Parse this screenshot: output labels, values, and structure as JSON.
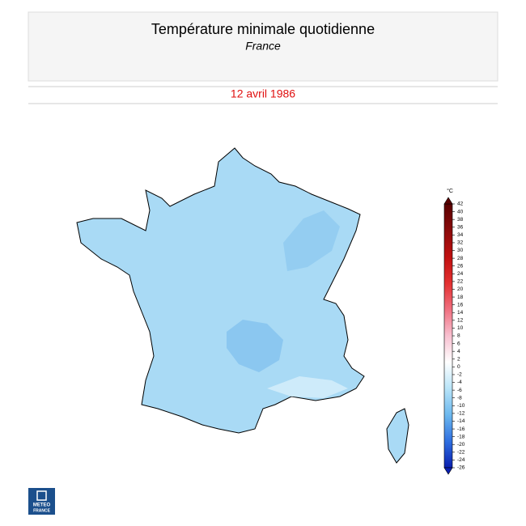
{
  "header": {
    "title": "Température minimale quotidienne",
    "subtitle": "France"
  },
  "date": "12 avril 1986",
  "map": {
    "fill": "#a9daf5",
    "stroke": "#000000"
  },
  "colorbar": {
    "unit": "°C",
    "range": [
      -26,
      42
    ],
    "ticks": [
      42,
      40,
      38,
      36,
      34,
      32,
      30,
      28,
      26,
      24,
      22,
      20,
      18,
      16,
      14,
      12,
      10,
      8,
      6,
      4,
      2,
      0,
      -2,
      -4,
      -6,
      -8,
      -10,
      -12,
      -14,
      -16,
      -18,
      -20,
      -22,
      -24,
      -26
    ],
    "colors": [
      "#5a0000",
      "#8b0b0b",
      "#c01010",
      "#e33030",
      "#f07080",
      "#f8c0d0",
      "#ffffff",
      "#b8e4f8",
      "#6cb8ee",
      "#2f6fe0",
      "#0a1fb0"
    ]
  },
  "logo": [
    "METEO",
    "FRANCE"
  ]
}
